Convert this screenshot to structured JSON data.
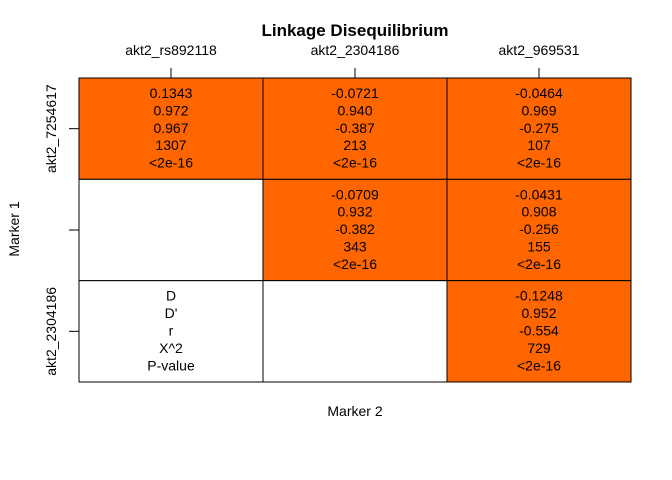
{
  "chart_data": {
    "type": "table",
    "title": "Linkage Disequilibrium",
    "xlabel": "Marker 2",
    "ylabel": "Marker 1",
    "col_labels": [
      "akt2_rs892118",
      "akt2_2304186",
      "akt2_969531"
    ],
    "row_labels": [
      "akt2_7254617",
      "",
      "akt2_2304186"
    ],
    "fill_color": "#FF6600",
    "empty_color": "#FFFFFF",
    "cells": [
      [
        {
          "filled": true,
          "lines": [
            "0.1343",
            "0.972",
            "0.967",
            "1307",
            "<2e-16"
          ]
        },
        {
          "filled": true,
          "lines": [
            "-0.0721",
            "0.940",
            "-0.387",
            "213",
            "<2e-16"
          ]
        },
        {
          "filled": true,
          "lines": [
            "-0.0464",
            "0.969",
            "-0.275",
            "107",
            "<2e-16"
          ]
        }
      ],
      [
        {
          "filled": false,
          "lines": []
        },
        {
          "filled": true,
          "lines": [
            "-0.0709",
            "0.932",
            "-0.382",
            "343",
            "<2e-16"
          ]
        },
        {
          "filled": true,
          "lines": [
            "-0.0431",
            "0.908",
            "-0.256",
            "155",
            "<2e-16"
          ]
        }
      ],
      [
        {
          "filled": false,
          "lines": [
            "D",
            "D'",
            "r",
            "X^2",
            "P-value"
          ]
        },
        {
          "filled": false,
          "lines": []
        },
        {
          "filled": true,
          "lines": [
            "-0.1248",
            "0.952",
            "-0.554",
            "729",
            "<2e-16"
          ]
        }
      ]
    ]
  }
}
